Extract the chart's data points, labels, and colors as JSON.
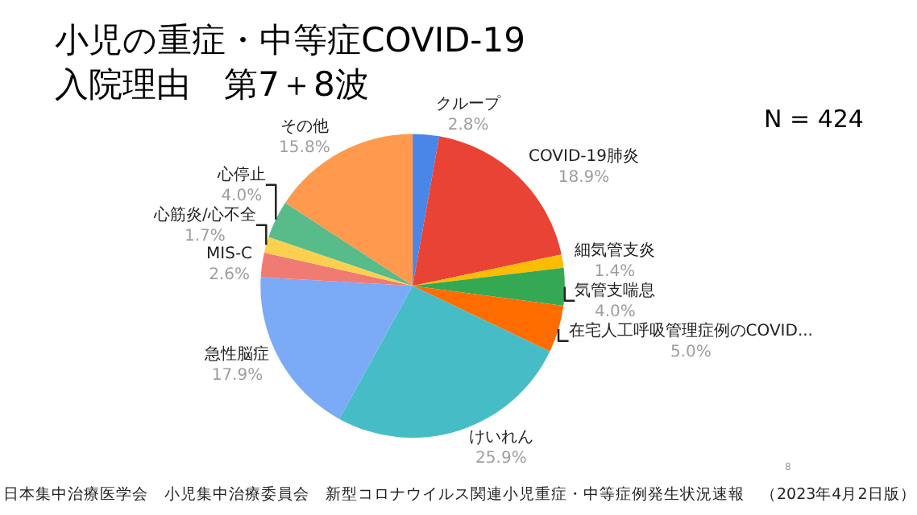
{
  "chart_data": {
    "type": "pie",
    "title": "小児の重症・中等症COVID-19\n入院理由　第7＋8波",
    "categories": [
      "クループ",
      "COVID-19肺炎",
      "細気管支炎",
      "気管支喘息",
      "在宅人工呼吸管理症例のCOVID...",
      "けいれん",
      "急性脳症",
      "MIS-C",
      "心筋炎/心不全",
      "心停止",
      "その他"
    ],
    "values": [
      2.8,
      18.9,
      1.4,
      4.0,
      5.0,
      25.9,
      17.9,
      2.6,
      1.7,
      4.0,
      15.8
    ],
    "colors": [
      "#4a86e8",
      "#e94335",
      "#fbbc04",
      "#34a853",
      "#ff6d01",
      "#46bdc6",
      "#7baaf7",
      "#f07b72",
      "#fcd04f",
      "#57bb8a",
      "#ff994d"
    ],
    "value_labels": [
      "2.8%",
      "18.9%",
      "1.4%",
      "4.0%",
      "5.0%",
      "25.9%",
      "17.9%",
      "2.6%",
      "1.7%",
      "4.0%",
      "15.8%"
    ],
    "legend": false,
    "annotations": [
      "N = 424",
      "日本集中治療医学会　小児集中治療委員会　新型コロナウイルス関連小児重症・中等症例発生状況速報　（2023年4月2日版）",
      "8"
    ]
  }
}
